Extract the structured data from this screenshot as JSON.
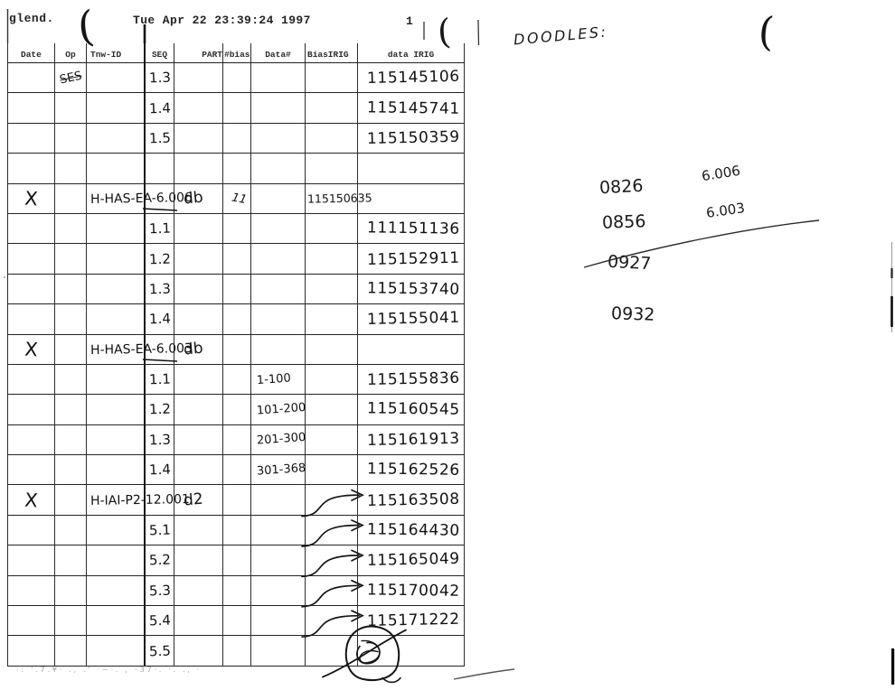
{
  "header": {
    "host": "glend.",
    "timestamp": "Tue Apr 22 23:39:24 1997",
    "page_number": "1",
    "paren_1": "(",
    "paren_2": "(",
    "paren_3": "("
  },
  "table": {
    "columns": [
      "Date",
      "Op",
      "Tnw-ID",
      "SEQ",
      "PART",
      "#bias",
      "Data#",
      "BiasIRIG",
      "data IRIG"
    ],
    "rows": [
      {
        "op": "SES",
        "seq": "1.3",
        "data_irig": "115145106"
      },
      {
        "seq": "1.4",
        "data_irig": "115145741"
      },
      {
        "seq": "1.5",
        "data_irig": "115150359"
      },
      {},
      {
        "date": "X",
        "tnw_id": "H-HAS-EA-6.006",
        "part": "db",
        "num_bias": "11",
        "bias_irig": "115150635"
      },
      {
        "seq": "1.1",
        "data_irig": "111151136"
      },
      {
        "seq": "1.2",
        "data_irig": "115152911"
      },
      {
        "seq": "1.3",
        "data_irig": "115153740"
      },
      {
        "seq": "1.4",
        "data_irig": "115155041"
      },
      {
        "date": "X",
        "tnw_id": "H-HAS-EA-6.003",
        "part": "db"
      },
      {
        "seq": "1.1",
        "data_num": "1-100",
        "data_irig": "115155836"
      },
      {
        "seq": "1.2",
        "data_num": "101-200",
        "data_irig": "115160545"
      },
      {
        "seq": "1.3",
        "data_num": "201-300",
        "data_irig": "115161913"
      },
      {
        "seq": "1.4",
        "data_num": "301-368",
        "data_irig": "115162526"
      },
      {
        "date": "X",
        "tnw_id": "H-IAI-P2-12.001",
        "part": "d2",
        "data_irig": "115163508",
        "arrow": true
      },
      {
        "seq": "5.1",
        "data_irig": "115164430",
        "arrow": true
      },
      {
        "seq": "5.2",
        "data_irig": "115165049",
        "arrow": true
      },
      {
        "seq": "5.3",
        "data_irig": "115170042",
        "arrow": true
      },
      {
        "seq": "5.4",
        "data_irig": "115171222",
        "arrow": true
      },
      {
        "seq": "5.5",
        "circled_doodle": true
      }
    ]
  },
  "doodles": {
    "label": "DOODLES:",
    "entries": [
      {
        "time": "0826",
        "value": "6.006"
      },
      {
        "time": "0856",
        "value": "6.003"
      },
      {
        "time": "0927",
        "value": ""
      },
      {
        "time": "0932",
        "value": ""
      }
    ]
  },
  "footer": {
    "noise": "·: '.7.¥·  ., .' ·~·.  ,  ·37·.   ·.    .,   ·"
  }
}
